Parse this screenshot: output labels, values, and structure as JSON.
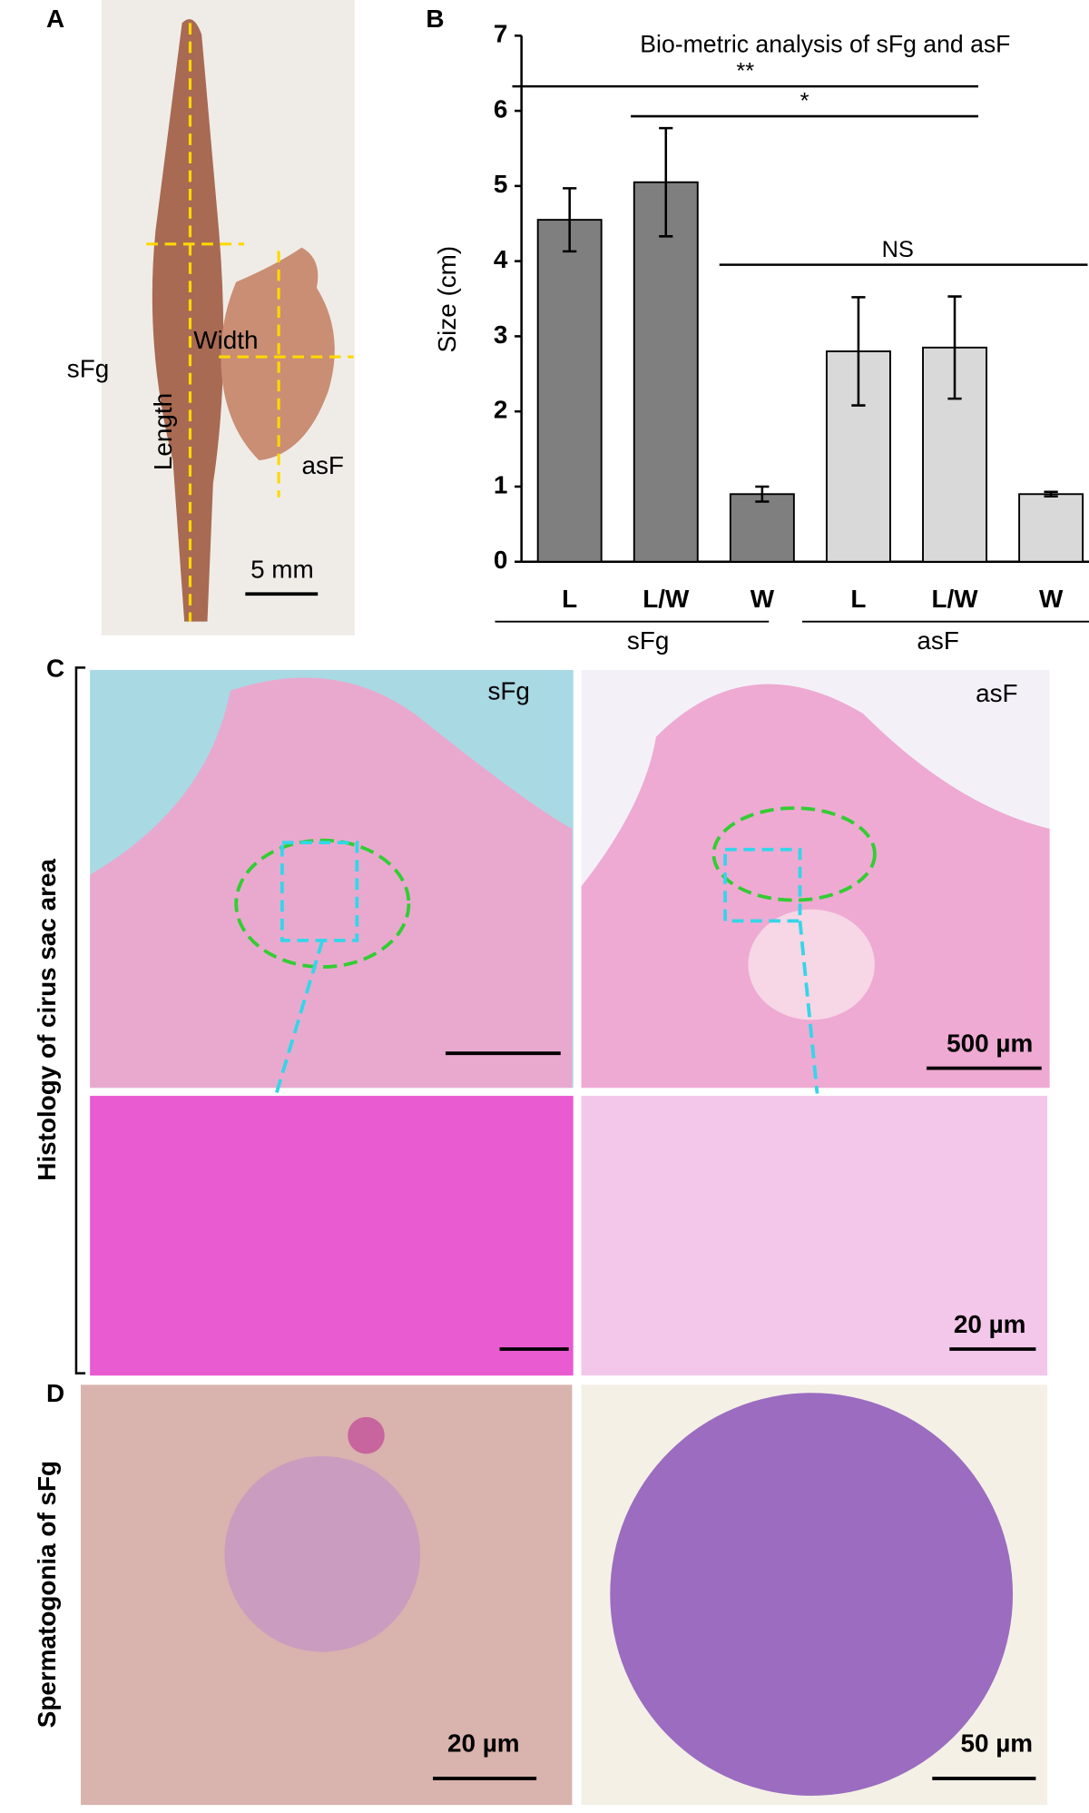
{
  "panels": {
    "A": {
      "letter": "A",
      "specimen_1": "sFg",
      "width_label": "Width",
      "length_label": "Length",
      "specimen_2": "asF",
      "scale": "5 mm"
    },
    "B": {
      "letter": "B",
      "group_1": "sFg",
      "group_2": "asF"
    },
    "C": {
      "letter": "C",
      "side_label": "Histology of cirus sac area",
      "left_title": "sFg",
      "right_title": "asF",
      "scale_top": "500 µm",
      "scale_bottom": "20 µm"
    },
    "D": {
      "letter": "D",
      "side_label": "Spermatogonia of sFg",
      "scale_left": "20 µm",
      "scale_right": "50 µm"
    }
  },
  "chart_data": {
    "type": "bar",
    "title": "Bio-metric analysis of sFg and asF",
    "y_label": "Size (cm)",
    "categories": [
      "L",
      "L/W",
      "W",
      "L",
      "L/W",
      "W"
    ],
    "values": [
      4.55,
      5.05,
      0.9,
      2.8,
      2.85,
      0.9
    ],
    "errors": [
      0.42,
      0.72,
      0.1,
      0.72,
      0.68,
      0.03
    ],
    "colors": [
      "#7f7f7f",
      "#7f7f7f",
      "#7f7f7f",
      "#d9d9d9",
      "#d9d9d9",
      "#d9d9d9"
    ],
    "ylim": [
      0,
      7
    ],
    "yticks": [
      0,
      1,
      2,
      3,
      4,
      5,
      6,
      7
    ],
    "annotations": [
      "**",
      "*",
      "NS"
    ]
  }
}
